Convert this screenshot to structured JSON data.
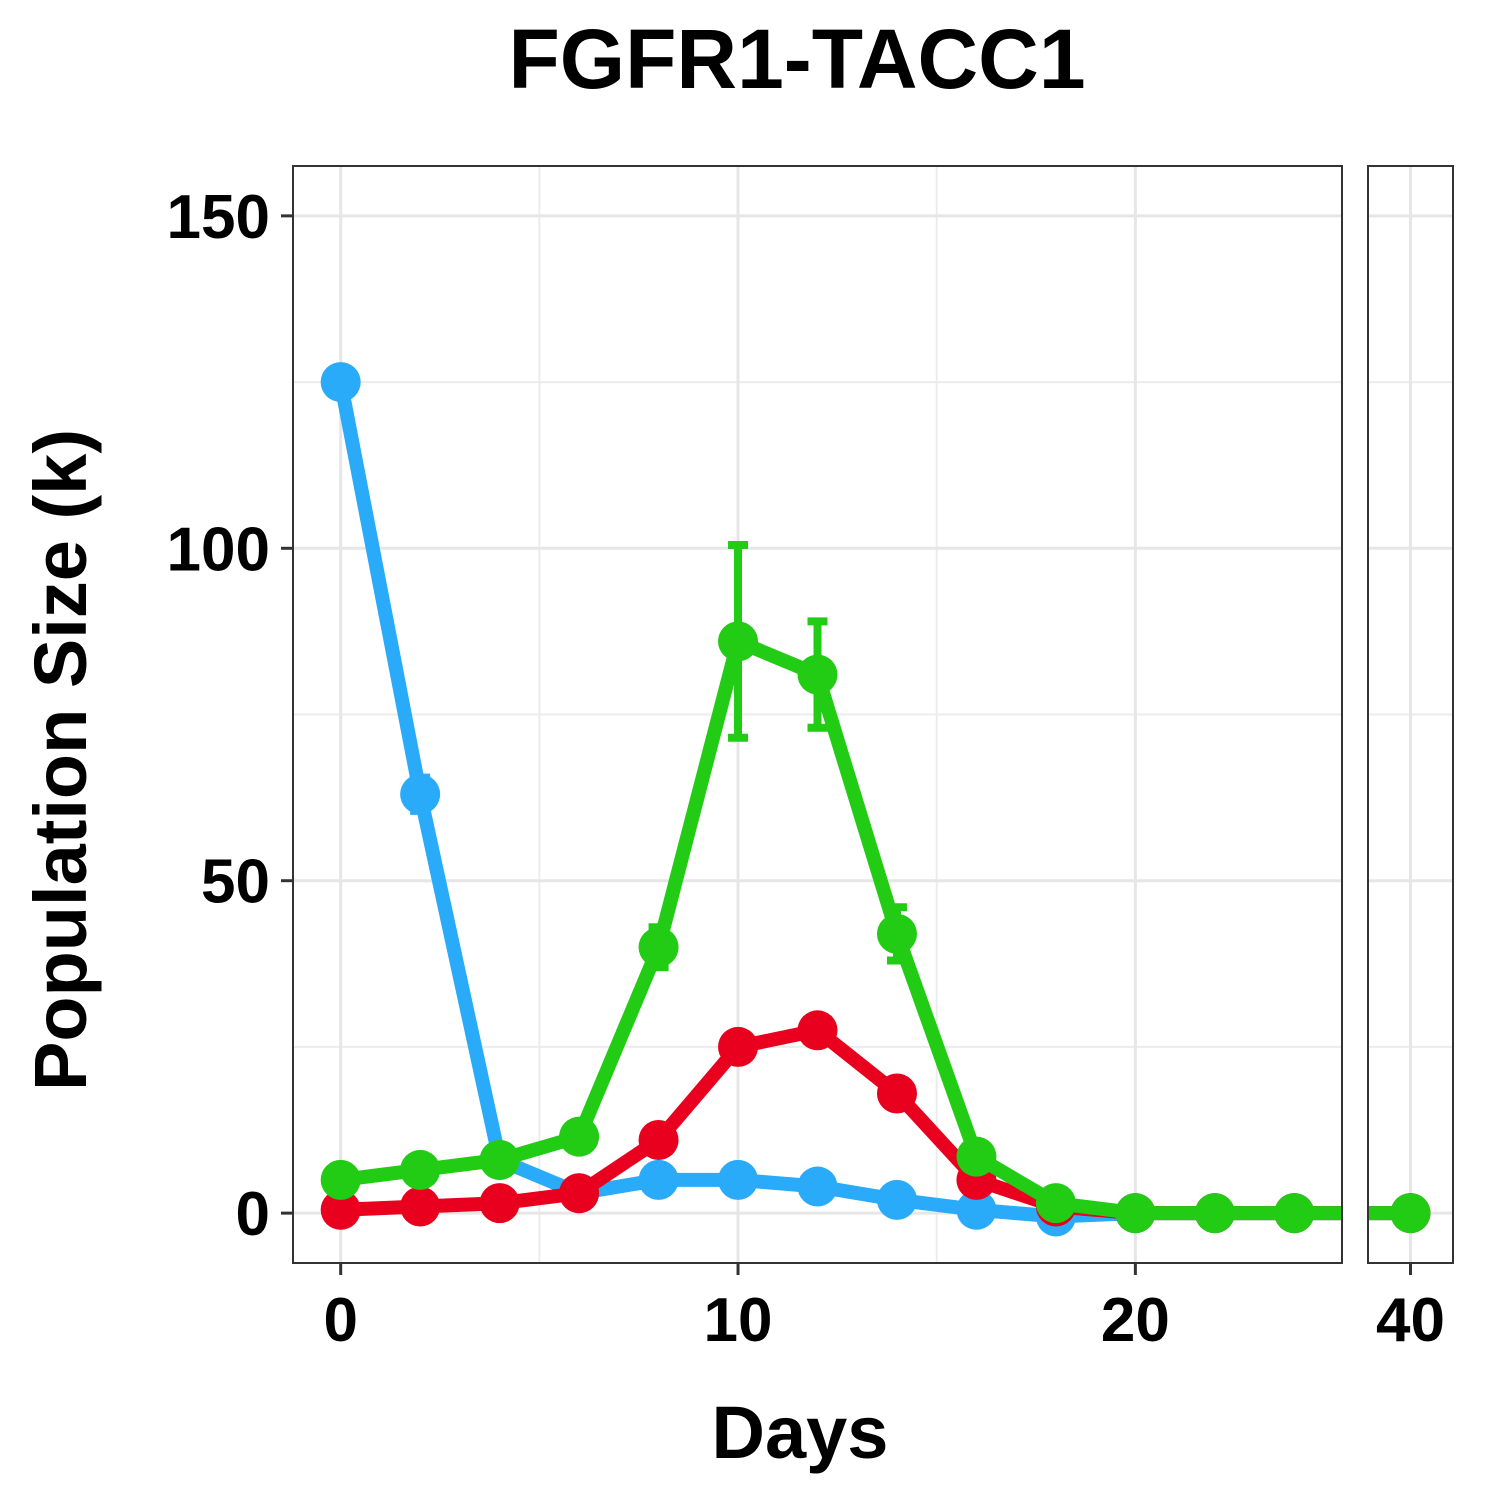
{
  "chart_data": {
    "type": "line",
    "title": "FGFR1-TACC1",
    "xlabel": "Days",
    "ylabel": "Population Size (k)",
    "ylim": [
      -7.5,
      157.5
    ],
    "yticks": [
      0,
      50,
      100,
      150
    ],
    "grid": true,
    "legend": "none",
    "panels": [
      {
        "xlim": [
          -1.2,
          25.2
        ],
        "xticks": [
          0,
          10,
          20
        ],
        "xtick_labels": [
          "0",
          "10",
          "20"
        ]
      },
      {
        "xlim": [
          38.1,
          41.9
        ],
        "xticks": [
          40
        ],
        "xtick_labels": [
          "40"
        ]
      }
    ],
    "series": [
      {
        "color": "#29abfa",
        "x": [
          0,
          2,
          4,
          6,
          8,
          10,
          12,
          14,
          16,
          18,
          20,
          22,
          24,
          40
        ],
        "y": [
          125,
          63,
          8,
          3,
          5,
          5,
          4,
          2,
          0.5,
          -0.5,
          0,
          0,
          0,
          0
        ],
        "err": [
          0,
          2.5,
          0.5,
          0.3,
          0.3,
          0.3,
          0.3,
          0.3,
          0.2,
          0.2,
          0,
          0,
          0,
          0
        ]
      },
      {
        "color": "#e8001e",
        "x": [
          0,
          2,
          4,
          6,
          8,
          10,
          12,
          14,
          16,
          18,
          20,
          22,
          24,
          40
        ],
        "y": [
          0.5,
          1,
          1.5,
          3,
          11,
          25,
          27.5,
          18,
          5,
          1,
          0,
          0,
          0,
          0
        ],
        "err": [
          0,
          0,
          0,
          0.3,
          0.5,
          0.5,
          0.5,
          0.5,
          0.5,
          0.2,
          0,
          0,
          0,
          0
        ]
      },
      {
        "color": "#22cc15",
        "x": [
          0,
          2,
          4,
          6,
          8,
          10,
          12,
          14,
          16,
          18,
          20,
          22,
          24,
          40
        ],
        "y": [
          5,
          6.5,
          8,
          11.5,
          40,
          86,
          81,
          42,
          8.5,
          1.5,
          0,
          0,
          0,
          0
        ],
        "err": [
          0,
          0,
          0,
          0.5,
          3,
          14.5,
          8,
          4,
          0.5,
          0.2,
          0,
          0,
          0,
          0
        ]
      }
    ]
  }
}
